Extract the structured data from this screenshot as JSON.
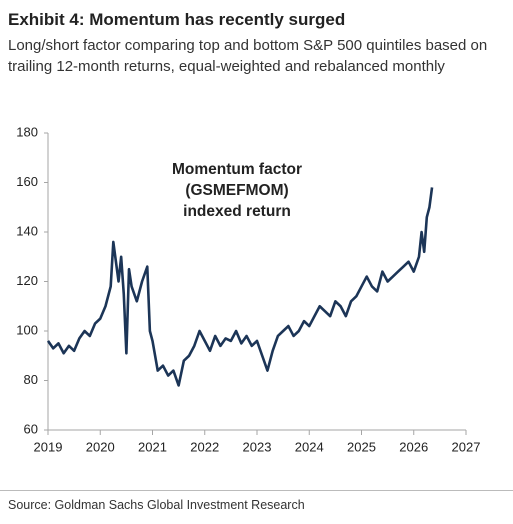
{
  "chart_data": {
    "type": "line",
    "title": "Exhibit 4: Momentum has recently surged",
    "subtitle": "Long/short factor comparing top and bottom S&P 500 quintiles based on trailing 12-month returns, equal-weighted and rebalanced monthly",
    "annotation": [
      "Momentum factor",
      "(GSMEFMOM)",
      "indexed return"
    ],
    "source": "Source: Goldman Sachs Global Investment Research",
    "x": [
      2019.0,
      2019.1,
      2019.2,
      2019.3,
      2019.4,
      2019.5,
      2019.6,
      2019.7,
      2019.8,
      2019.9,
      2020.0,
      2020.1,
      2020.2,
      2020.25,
      2020.3,
      2020.35,
      2020.4,
      2020.45,
      2020.5,
      2020.55,
      2020.6,
      2020.7,
      2020.8,
      2020.9,
      2020.95,
      2021.0,
      2021.05,
      2021.1,
      2021.2,
      2021.3,
      2021.4,
      2021.5,
      2021.6,
      2021.7,
      2021.8,
      2021.9,
      2022.0,
      2022.1,
      2022.2,
      2022.3,
      2022.4,
      2022.5,
      2022.6,
      2022.7,
      2022.8,
      2022.9,
      2023.0,
      2023.1,
      2023.2,
      2023.3,
      2023.4,
      2023.5,
      2023.6,
      2023.7,
      2023.8,
      2023.9,
      2024.0,
      2024.1,
      2024.2,
      2024.3,
      2024.4,
      2024.5,
      2024.6,
      2024.7,
      2024.8,
      2024.9,
      2025.0,
      2025.1,
      2025.2,
      2025.3,
      2025.4,
      2025.5,
      2025.6,
      2025.7,
      2025.8,
      2025.9,
      2026.0,
      2026.1,
      2026.15,
      2026.2,
      2026.25,
      2026.3,
      2026.35
    ],
    "series": [
      {
        "color": "#1c3557",
        "values": [
          96,
          93,
          95,
          91,
          94,
          92,
          97,
          100,
          98,
          103,
          105,
          110,
          118,
          136,
          128,
          120,
          130,
          115,
          91,
          125,
          118,
          112,
          120,
          126,
          100,
          96,
          90,
          84,
          86,
          82,
          84,
          78,
          88,
          90,
          94,
          100,
          96,
          92,
          98,
          94,
          97,
          96,
          100,
          95,
          98,
          94,
          96,
          90,
          84,
          92,
          98,
          100,
          102,
          98,
          100,
          104,
          102,
          106,
          110,
          108,
          106,
          112,
          110,
          106,
          112,
          114,
          118,
          122,
          118,
          116,
          124,
          120,
          122,
          124,
          126,
          128,
          124,
          130,
          140,
          132,
          146,
          150,
          158
        ]
      }
    ],
    "xlim": [
      2019,
      2027
    ],
    "xticks": [
      2019,
      2020,
      2021,
      2022,
      2023,
      2024,
      2025,
      2026,
      2027
    ],
    "ylim": [
      60,
      180
    ],
    "yticks": [
      60,
      80,
      100,
      120,
      140,
      160,
      180
    ],
    "axis_color": "#a6a6a6"
  }
}
